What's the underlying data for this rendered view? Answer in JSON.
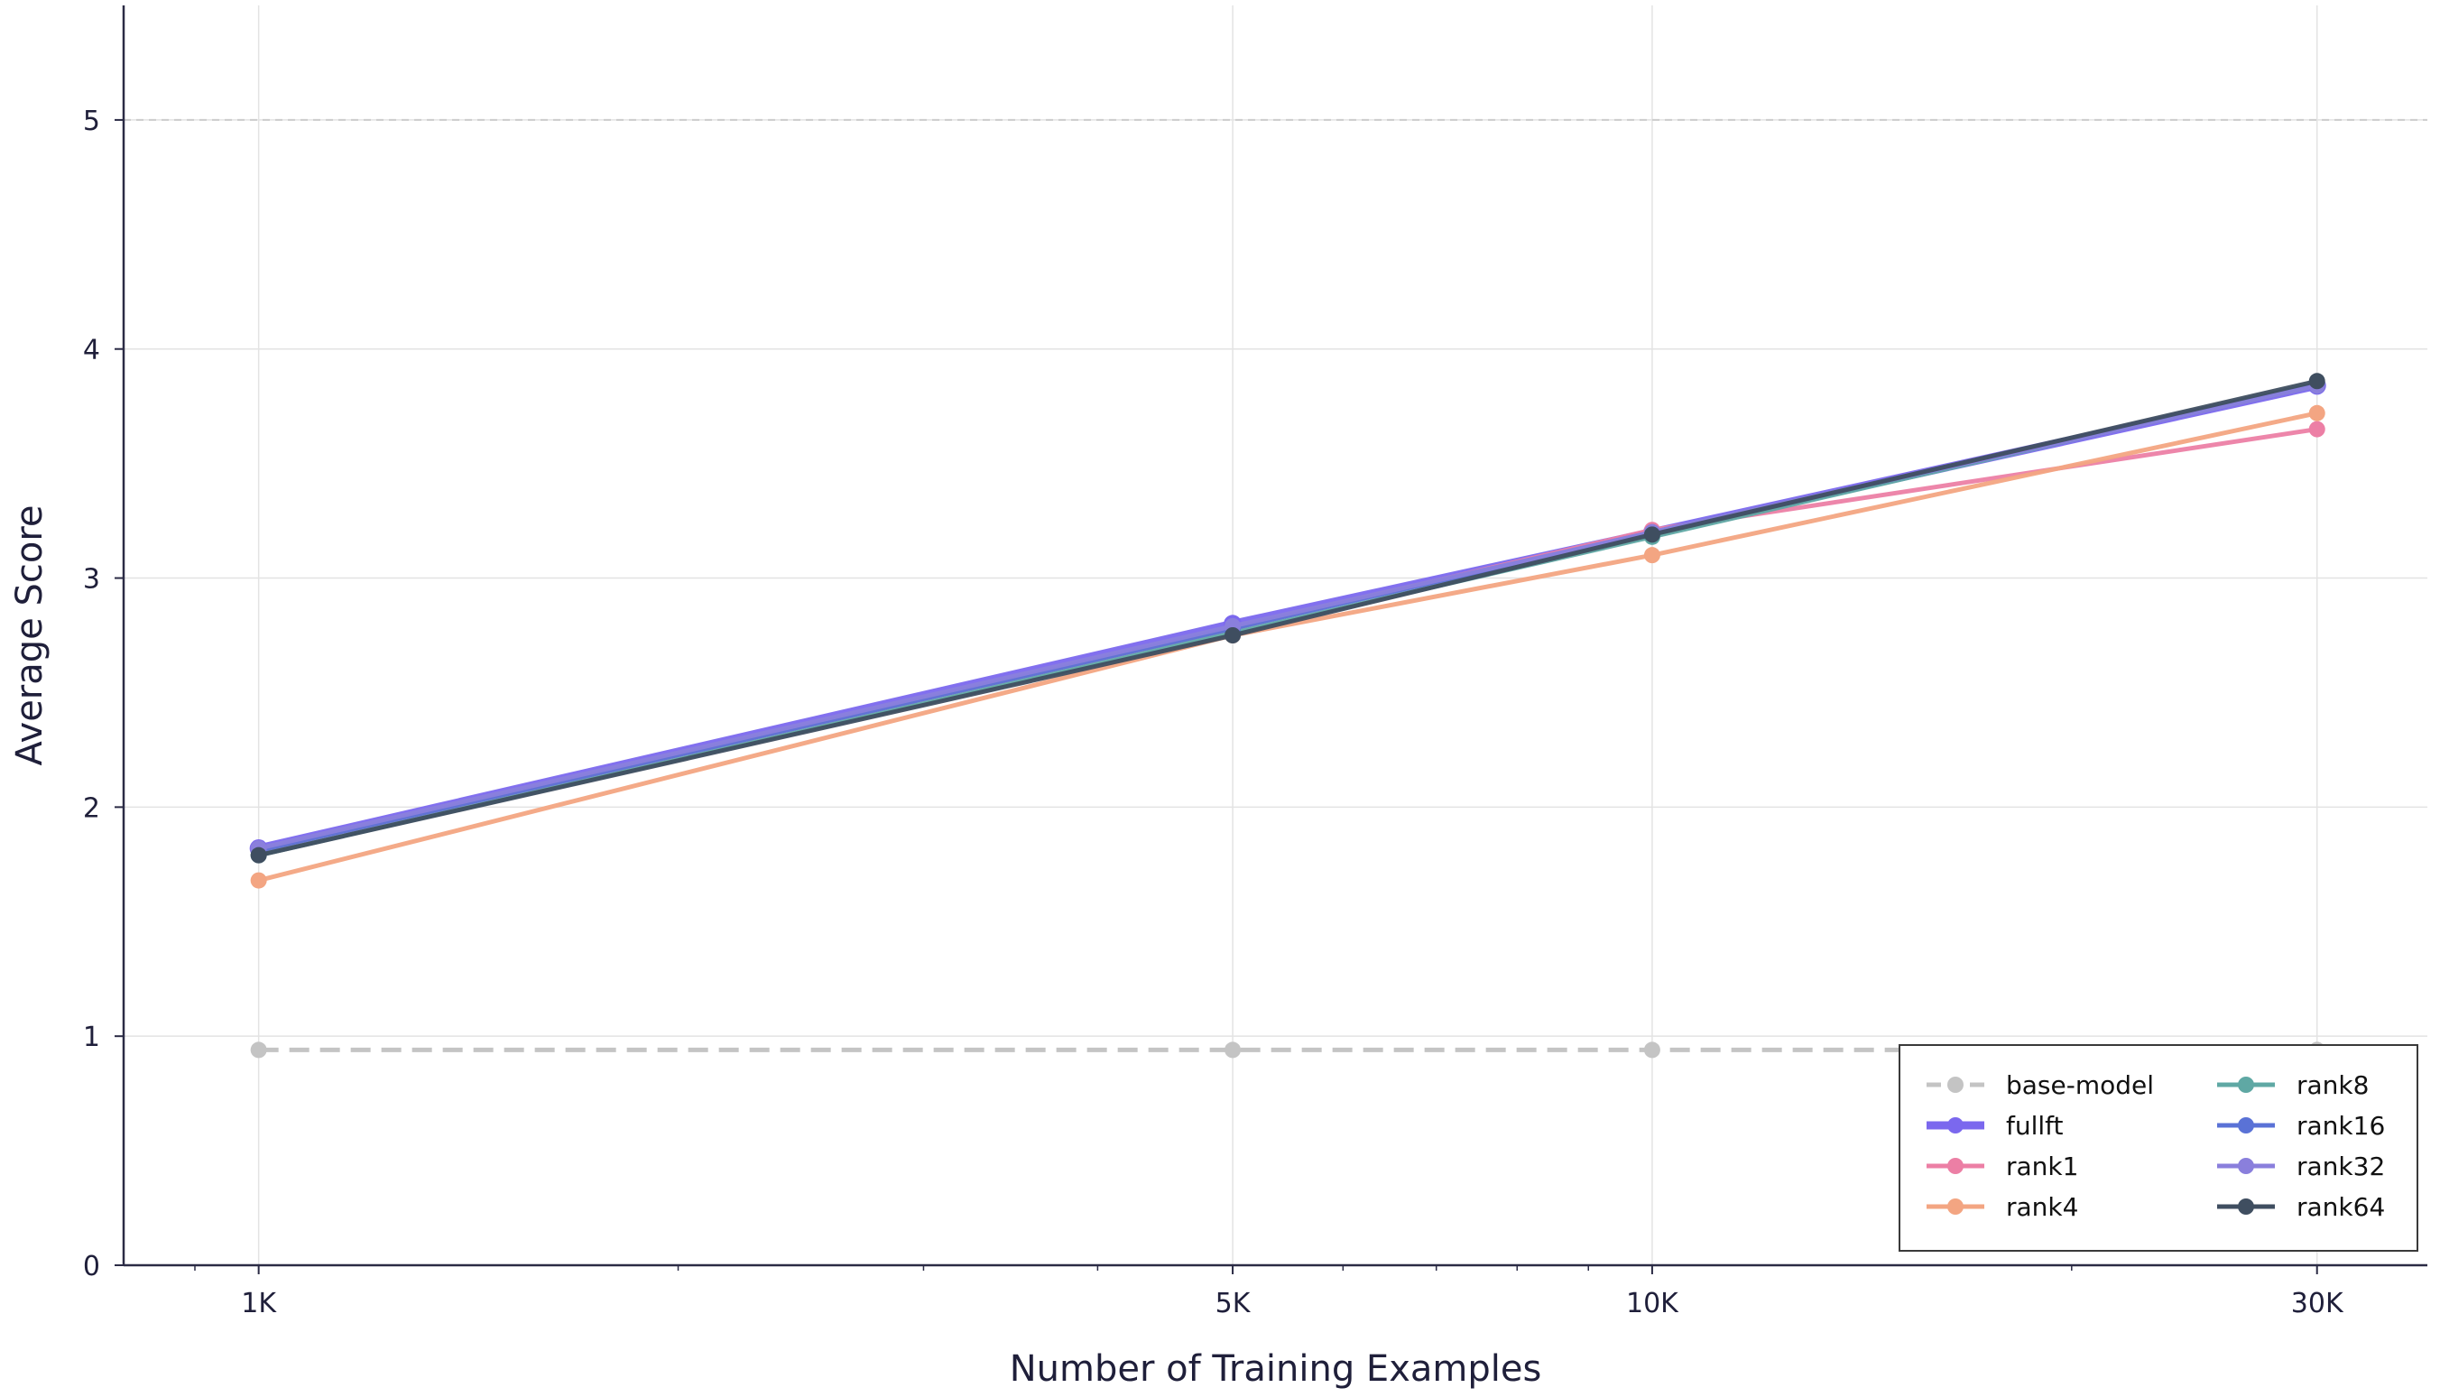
{
  "chart_data": {
    "type": "line",
    "title": "",
    "xlabel": "Number of Training Examples",
    "ylabel": "Average Score",
    "xscale": "log",
    "xlim": [
      800,
      36000
    ],
    "ylim": [
      0,
      5.5
    ],
    "x_ticks": [
      {
        "value": 1000,
        "label": "1K"
      },
      {
        "value": 5000,
        "label": "5K"
      },
      {
        "value": 10000,
        "label": "10K"
      },
      {
        "value": 30000,
        "label": "30K"
      }
    ],
    "y_ticks": [
      {
        "value": 0,
        "label": "0"
      },
      {
        "value": 1,
        "label": "1"
      },
      {
        "value": 2,
        "label": "2"
      },
      {
        "value": 3,
        "label": "3"
      },
      {
        "value": 4,
        "label": "4"
      },
      {
        "value": 5,
        "label": "5"
      }
    ],
    "grid": true,
    "reference_line": {
      "y": 5,
      "style": "dashed",
      "color": "#cccccc"
    },
    "legend_position": "bottom-right",
    "legend_columns": 2,
    "x": [
      1000,
      5000,
      10000,
      30000
    ],
    "series": [
      {
        "name": "base-model",
        "color": "#c4c4c4",
        "dashed": true,
        "values": [
          0.94,
          0.94,
          0.94,
          0.94
        ]
      },
      {
        "name": "fullft",
        "color": "#7b68ee",
        "width": "thick",
        "values": [
          1.82,
          2.8,
          3.2,
          3.84
        ]
      },
      {
        "name": "rank1",
        "color": "#ec7fa5",
        "values": [
          1.81,
          2.78,
          3.21,
          3.65
        ]
      },
      {
        "name": "rank4",
        "color": "#f3a582",
        "values": [
          1.68,
          2.75,
          3.1,
          3.72
        ]
      },
      {
        "name": "rank8",
        "color": "#5fa8a4",
        "values": [
          1.79,
          2.76,
          3.18,
          3.85
        ]
      },
      {
        "name": "rank16",
        "color": "#5a72d6",
        "values": [
          1.81,
          2.78,
          3.2,
          3.84
        ]
      },
      {
        "name": "rank32",
        "color": "#8a7fdc",
        "values": [
          1.82,
          2.79,
          3.2,
          3.84
        ]
      },
      {
        "name": "rank64",
        "color": "#3f4e60",
        "values": [
          1.79,
          2.75,
          3.19,
          3.86
        ]
      }
    ]
  }
}
